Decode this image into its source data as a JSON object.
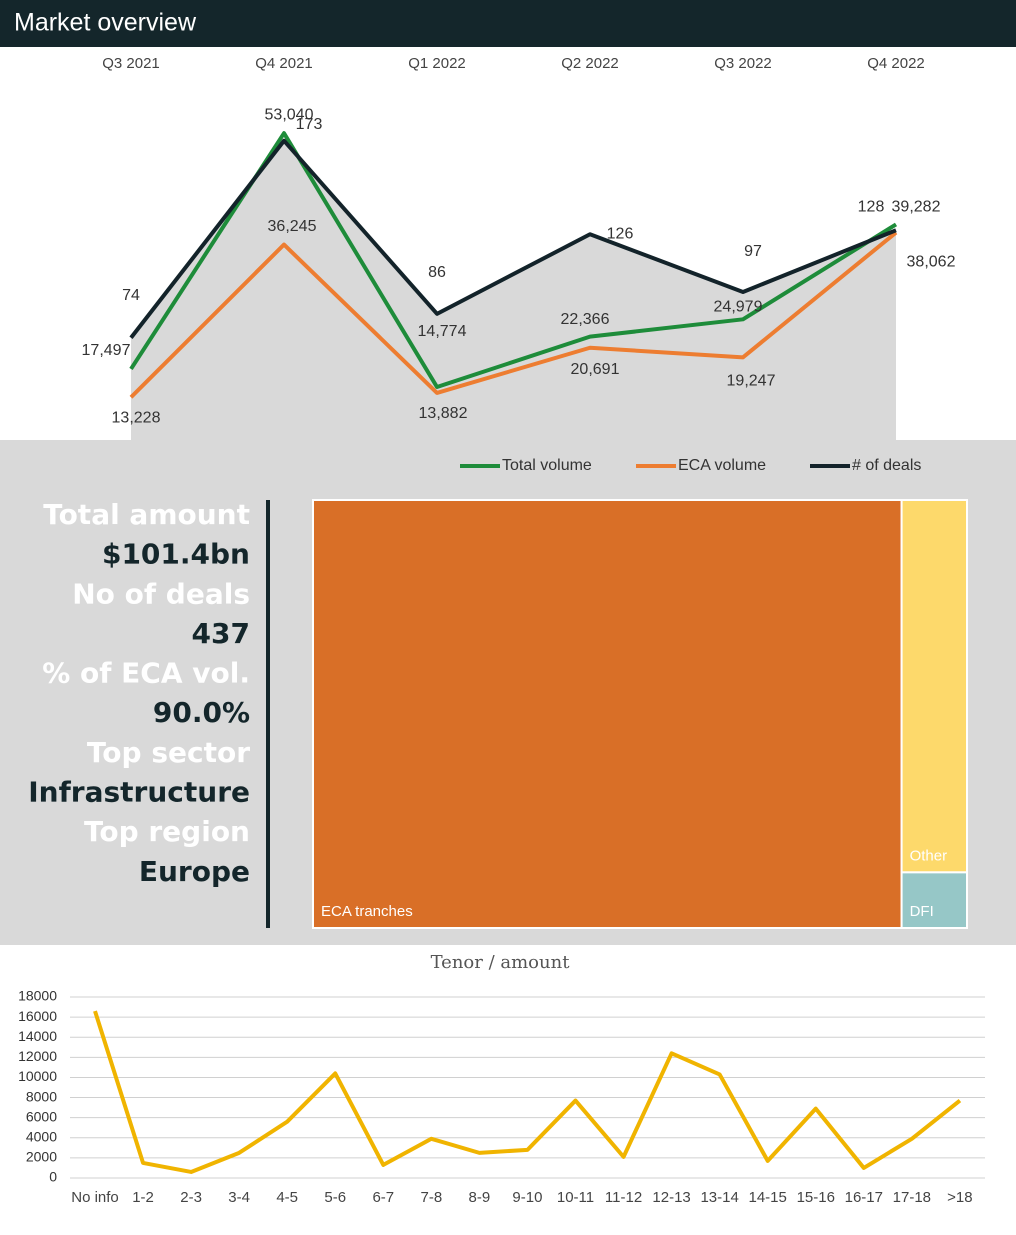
{
  "header": {
    "title": "Market overview"
  },
  "kpis": [
    {
      "label": "Total amount",
      "value": "$101.4bn"
    },
    {
      "label": "No of deals",
      "value": "437"
    },
    {
      "label": "% of ECA vol.",
      "value": "90.0%"
    },
    {
      "label": "Top sector",
      "value": "Infrastructure"
    },
    {
      "label": "Top region",
      "value": "Europe"
    }
  ],
  "chart_data": [
    {
      "type": "line",
      "categories": [
        "Q3 2021",
        "Q4 2021",
        "Q1 2022",
        "Q2 2022",
        "Q3 2022",
        "Q4 2022"
      ],
      "series": [
        {
          "name": "Total volume",
          "color": "#1e8c3a",
          "values": [
            17497,
            53040,
            14774,
            22366,
            24979,
            39282
          ],
          "value_labels": [
            "17,497",
            "53,040",
            "14,774",
            "22,366",
            "24,979",
            "39,282"
          ]
        },
        {
          "name": "ECA volume",
          "color": "#ed7d31",
          "values": [
            13228,
            36245,
            13882,
            20691,
            19247,
            38062
          ],
          "value_labels": [
            "13,228",
            "36,245",
            "13,882",
            "20,691",
            "19,247",
            "38,062"
          ]
        },
        {
          "name": "# of deals",
          "color": "#13232a",
          "values": [
            74,
            173,
            86,
            126,
            97,
            128
          ],
          "axis": "y2"
        }
      ],
      "ylim": [
        0,
        60000
      ],
      "y2lim": [
        0,
        200
      ],
      "legend": "bottom"
    },
    {
      "type": "treemap",
      "categories": [
        "ECA tranches",
        "Other",
        "DFI"
      ],
      "values": [
        90,
        8.7,
        1.3
      ],
      "colors": [
        "#d96f27",
        "#fdd96b",
        "#96c7c7"
      ]
    },
    {
      "type": "line",
      "title": "Tenor / amount",
      "categories": [
        "No info",
        "1-2",
        "2-3",
        "3-4",
        "4-5",
        "5-6",
        "6-7",
        "7-8",
        "8-9",
        "9-10",
        "10-11",
        "11-12",
        "12-13",
        "13-14",
        "14-15",
        "15-16",
        "16-17",
        "17-18",
        ">18"
      ],
      "series": [
        {
          "color": "#f0b400",
          "values": [
            16600,
            1500,
            600,
            2500,
            5600,
            10400,
            1300,
            3900,
            2500,
            2800,
            7700,
            2100,
            12400,
            10300,
            1700,
            6900,
            1000,
            3900,
            7700
          ]
        }
      ],
      "ylim": [
        0,
        18000
      ],
      "yticks": [
        0,
        2000,
        4000,
        6000,
        8000,
        10000,
        12000,
        14000,
        16000,
        18000
      ],
      "grid": true
    }
  ]
}
